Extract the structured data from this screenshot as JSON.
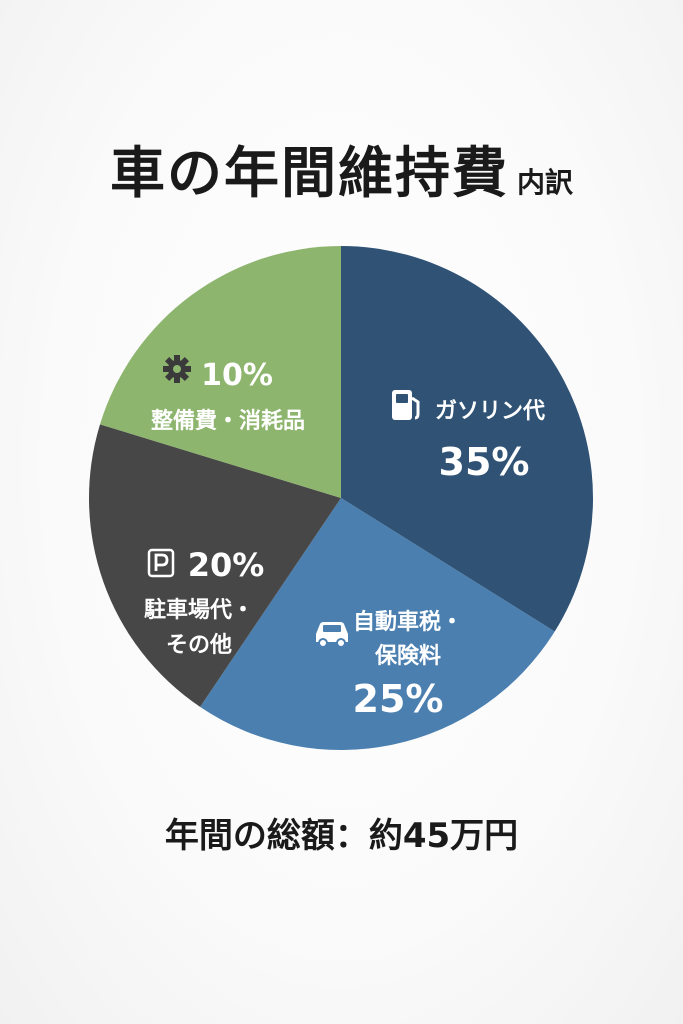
{
  "title": {
    "main": "車の年間維持費",
    "sub": "内訳"
  },
  "total_label": "年間の総額：約45万円",
  "chart_data": {
    "type": "pie",
    "title": "車の年間維持費 内訳",
    "slices": [
      {
        "label_lines": [
          "ガソリン代"
        ],
        "value": 35,
        "value_text": "35%",
        "color": "#2f5275",
        "icon": "fuel-pump-icon"
      },
      {
        "label_lines": [
          "自動車税・",
          "保険料"
        ],
        "value": 25,
        "value_text": "25%",
        "color": "#4a7fb0",
        "icon": "car-icon"
      },
      {
        "label_lines": [
          "駐車場代・",
          "その他"
        ],
        "value": 20,
        "value_text": "20%",
        "color": "#474747",
        "icon": "parking-icon"
      },
      {
        "label_lines": [
          "整備費・消耗品"
        ],
        "value": 10,
        "value_text": "10%",
        "color": "#8db56e",
        "icon": "gear-icon"
      }
    ]
  }
}
